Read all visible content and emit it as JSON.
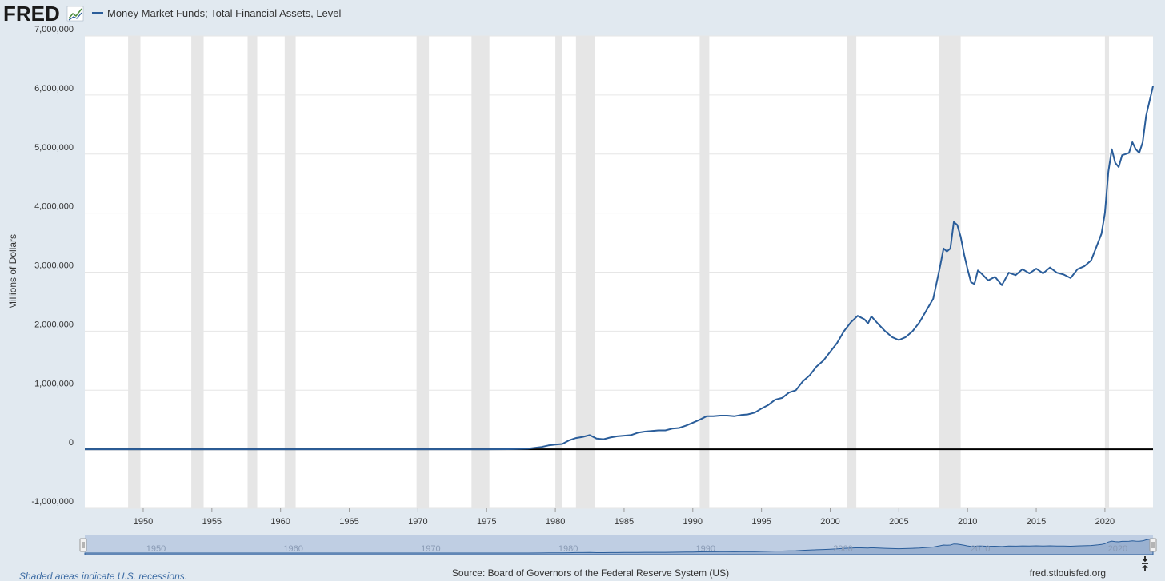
{
  "header": {
    "logo_text": "FRED",
    "legend_label": "Money Market Funds; Total Financial Assets, Level"
  },
  "footer": {
    "note": "Shaded areas indicate U.S. recessions.",
    "source": "Source: Board of Governors of the Federal Reserve System (US)",
    "site": "fred.stlouisfed.org"
  },
  "colors": {
    "series": "#2a5d9a",
    "background": "#e1e9f0",
    "plot_background": "#ffffff",
    "recession": "#e6e6e6",
    "zero_line": "#000000",
    "navigator": "#b8c9e0"
  },
  "chart_data": {
    "type": "line",
    "title": "",
    "xlabel": "",
    "ylabel": "Millions of Dollars",
    "xlim": [
      1945.75,
      2023.5
    ],
    "ylim": [
      -1000000,
      7000000
    ],
    "y_ticks": [
      -1000000,
      0,
      1000000,
      2000000,
      3000000,
      4000000,
      5000000,
      6000000,
      7000000
    ],
    "y_tick_labels": [
      "-1,000,000",
      "0",
      "1,000,000",
      "2,000,000",
      "3,000,000",
      "4,000,000",
      "5,000,000",
      "6,000,000",
      "7,000,000"
    ],
    "x_ticks": [
      1950,
      1955,
      1960,
      1965,
      1970,
      1975,
      1980,
      1985,
      1990,
      1995,
      2000,
      2005,
      2010,
      2015,
      2020
    ],
    "x_tick_labels": [
      "1950",
      "1955",
      "1960",
      "1965",
      "1970",
      "1975",
      "1980",
      "1985",
      "1990",
      "1995",
      "2000",
      "2005",
      "2010",
      "2015",
      "2020"
    ],
    "grid": true,
    "legend_position": "top-left",
    "recessions": [
      [
        1948.9,
        1949.8
      ],
      [
        1953.5,
        1954.4
      ],
      [
        1957.6,
        1958.3
      ],
      [
        1960.3,
        1961.1
      ],
      [
        1969.9,
        1970.8
      ],
      [
        1973.9,
        1975.2
      ],
      [
        1980.0,
        1980.5
      ],
      [
        1981.5,
        1982.9
      ],
      [
        1990.5,
        1991.2
      ],
      [
        2001.2,
        2001.9
      ],
      [
        2007.9,
        2009.5
      ],
      [
        2020.0,
        2020.3
      ]
    ],
    "series": [
      {
        "name": "Money Market Funds; Total Financial Assets, Level",
        "x": [
          1945.75,
          1975.0,
          1977.0,
          1978.0,
          1979.0,
          1979.5,
          1980.0,
          1980.5,
          1981.0,
          1981.5,
          1982.0,
          1982.5,
          1983.0,
          1983.5,
          1984.0,
          1984.5,
          1985.0,
          1985.5,
          1986.0,
          1986.5,
          1987.0,
          1987.5,
          1988.0,
          1988.5,
          1989.0,
          1989.5,
          1990.0,
          1990.5,
          1991.0,
          1991.5,
          1992.0,
          1992.5,
          1993.0,
          1993.5,
          1994.0,
          1994.5,
          1995.0,
          1995.5,
          1996.0,
          1996.5,
          1997.0,
          1997.5,
          1998.0,
          1998.5,
          1999.0,
          1999.5,
          2000.0,
          2000.5,
          2001.0,
          2001.5,
          2002.0,
          2002.5,
          2002.75,
          2003.0,
          2003.5,
          2004.0,
          2004.5,
          2005.0,
          2005.5,
          2006.0,
          2006.5,
          2007.0,
          2007.5,
          2008.0,
          2008.25,
          2008.5,
          2008.75,
          2009.0,
          2009.25,
          2009.5,
          2009.75,
          2010.0,
          2010.25,
          2010.5,
          2010.75,
          2011.0,
          2011.5,
          2012.0,
          2012.5,
          2013.0,
          2013.5,
          2014.0,
          2014.5,
          2015.0,
          2015.5,
          2016.0,
          2016.5,
          2017.0,
          2017.5,
          2018.0,
          2018.5,
          2019.0,
          2019.5,
          2019.75,
          2020.0,
          2020.25,
          2020.5,
          2020.75,
          2021.0,
          2021.25,
          2021.5,
          2021.75,
          2022.0,
          2022.25,
          2022.5,
          2022.75,
          2023.0,
          2023.25,
          2023.5
        ],
        "y": [
          0,
          0,
          3000,
          10000,
          40000,
          65000,
          80000,
          90000,
          150000,
          190000,
          210000,
          240000,
          180000,
          170000,
          200000,
          220000,
          230000,
          240000,
          280000,
          300000,
          310000,
          320000,
          320000,
          350000,
          360000,
          400000,
          450000,
          500000,
          560000,
          560000,
          570000,
          570000,
          560000,
          580000,
          590000,
          620000,
          690000,
          750000,
          840000,
          870000,
          960000,
          1000000,
          1150000,
          1250000,
          1400000,
          1500000,
          1650000,
          1800000,
          2000000,
          2150000,
          2260000,
          2200000,
          2130000,
          2250000,
          2120000,
          2000000,
          1900000,
          1850000,
          1900000,
          2000000,
          2150000,
          2350000,
          2550000,
          3100000,
          3400000,
          3350000,
          3400000,
          3850000,
          3800000,
          3600000,
          3300000,
          3050000,
          2830000,
          2800000,
          3030000,
          2980000,
          2860000,
          2920000,
          2780000,
          2990000,
          2950000,
          3050000,
          2980000,
          3060000,
          2980000,
          3080000,
          2990000,
          2960000,
          2900000,
          3050000,
          3100000,
          3200000,
          3500000,
          3650000,
          4000000,
          4700000,
          5080000,
          4850000,
          4780000,
          4980000,
          5000000,
          5020000,
          5200000,
          5080000,
          5020000,
          5200000,
          5650000,
          5900000,
          6150000
        ]
      }
    ]
  }
}
